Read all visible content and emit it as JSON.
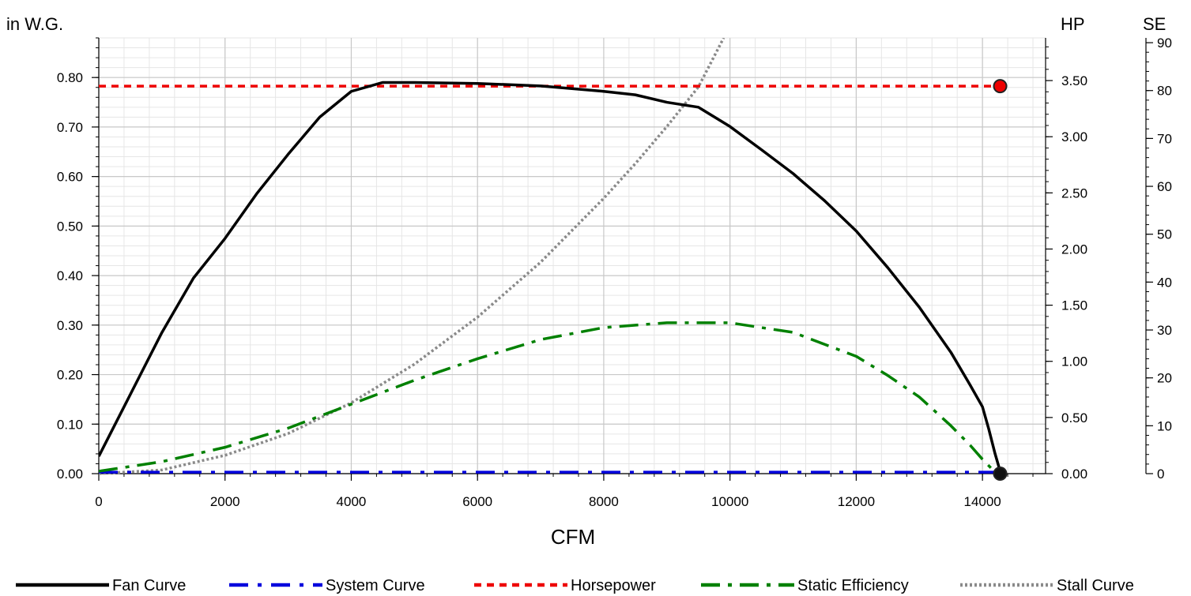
{
  "chart_data": {
    "type": "line",
    "xlabel": "CFM",
    "left_axis_label": "in W.G.",
    "right_axis_label": "HP",
    "far_right_axis_label": "SE",
    "xlim": [
      0,
      15000
    ],
    "x_ticks": [
      "0",
      "2000",
      "4000",
      "6000",
      "8000",
      "10000",
      "12000",
      "14000"
    ],
    "ylim": [
      0,
      0.88
    ],
    "y_ticks": [
      "0.00",
      "0.10",
      "0.20",
      "0.30",
      "0.40",
      "0.50",
      "0.60",
      "0.70",
      "0.80"
    ],
    "hp_lim": [
      0,
      3.88
    ],
    "hp_ticks": [
      "0.00",
      "0.50",
      "1.00",
      "1.50",
      "2.00",
      "2.50",
      "3.00",
      "3.50"
    ],
    "se_lim": [
      0,
      91
    ],
    "se_ticks": [
      "0",
      "10",
      "20",
      "30",
      "40",
      "50",
      "60",
      "70",
      "80",
      "90"
    ],
    "grid": true,
    "legend_position": "bottom",
    "colors": {
      "fan": "#000000",
      "system": "#0000dd",
      "horsepower": "#ee0000",
      "efficiency": "#008000",
      "stall": "#8a8a8a",
      "grid_major": "#c8c8c8",
      "grid_minor": "#e6e6e6"
    },
    "series": [
      {
        "name": "Fan Curve",
        "axis": "left",
        "x": [
          0,
          500,
          1000,
          1500,
          2000,
          2500,
          3000,
          3500,
          4000,
          4500,
          5000,
          6000,
          7000,
          8000,
          8500,
          9000,
          9500,
          10000,
          10500,
          11000,
          11500,
          12000,
          12500,
          13000,
          13500,
          13800,
          14000,
          14100,
          14200,
          14280
        ],
        "y": [
          0.035,
          0.16,
          0.285,
          0.395,
          0.475,
          0.565,
          0.645,
          0.72,
          0.772,
          0.79,
          0.79,
          0.788,
          0.783,
          0.772,
          0.765,
          0.75,
          0.74,
          0.701,
          0.654,
          0.606,
          0.551,
          0.49,
          0.416,
          0.336,
          0.245,
          0.18,
          0.135,
          0.09,
          0.04,
          0.005
        ]
      },
      {
        "name": "System Curve",
        "axis": "left",
        "x": [
          0,
          14280
        ],
        "y": [
          0.003,
          0.003
        ]
      },
      {
        "name": "Horsepower",
        "axis": "hp",
        "x": [
          0,
          14280
        ],
        "y": [
          3.45,
          3.45
        ]
      },
      {
        "name": "Static Efficiency",
        "axis": "se",
        "x": [
          0,
          1000,
          2000,
          3000,
          4000,
          5000,
          6000,
          7000,
          8000,
          9000,
          10000,
          11000,
          12000,
          12500,
          13000,
          13500,
          13800,
          14000,
          14200
        ],
        "y": [
          0.5,
          2.5,
          5.5,
          9.5,
          14.5,
          19.5,
          24,
          28,
          30.5,
          31.5,
          31.5,
          29.5,
          24.5,
          20.5,
          16,
          10,
          6,
          3,
          0.3
        ]
      },
      {
        "name": "Stall Curve",
        "axis": "left",
        "x": [
          0,
          1000,
          2000,
          3000,
          4000,
          5000,
          6000,
          7000,
          8000,
          8500,
          9000,
          9500,
          9900
        ],
        "y": [
          0,
          0.0074,
          0.037,
          0.081,
          0.143,
          0.221,
          0.316,
          0.427,
          0.556,
          0.626,
          0.701,
          0.781,
          0.88
        ]
      }
    ],
    "operating_points": [
      {
        "series": "Horsepower",
        "x": 14280,
        "y": 3.45,
        "fill": "#ee0000"
      },
      {
        "series": "Fan Curve",
        "x": 14280,
        "y": 0.0,
        "fill": "#111111"
      }
    ]
  }
}
